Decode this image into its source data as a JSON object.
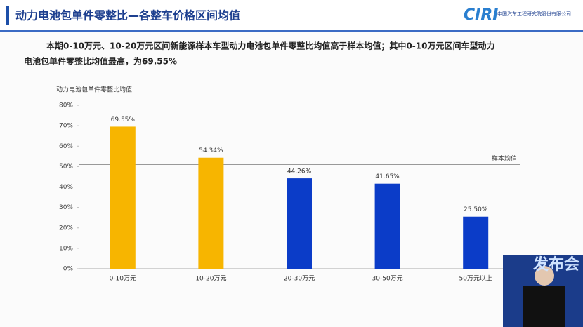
{
  "chart_data": {
    "type": "bar",
    "title": "动力电池包单件零整比—各整车价格区间均值",
    "logo": "CIRI",
    "organization": "中国汽车工程研究院股份有限公司",
    "subtitle_lines": [
      "本期0-10万元、10-20万元区间新能源样本车型动力电池包单件零整比均值高于样本均值；其中0-10万元区间车型动力",
      "电池包单件零整比均值最高，为69.55%"
    ],
    "ylabel": "动力电池包单件零整比均值",
    "categories": [
      "0-10万元",
      "10-20万元",
      "20-30万元",
      "30-50万元",
      "50万元以上"
    ],
    "values": [
      69.55,
      54.34,
      44.26,
      41.65,
      25.5
    ],
    "value_labels": [
      "69.55%",
      "54.34%",
      "44.26%",
      "41.65%",
      "25.50%"
    ],
    "colors": [
      "#f7b500",
      "#f7b500",
      "#0b3cc8",
      "#0b3cc8",
      "#0b3cc8"
    ],
    "reference_line": {
      "value": 51,
      "label": "样本均值"
    },
    "ylim": [
      0,
      80
    ],
    "yticks": [
      {
        "value": 0,
        "label": "0%"
      },
      {
        "value": 10,
        "label": "10%"
      },
      {
        "value": 20,
        "label": "20%"
      },
      {
        "value": 30,
        "label": "30%"
      },
      {
        "value": 40,
        "label": "40%"
      },
      {
        "value": 50,
        "label": "50%"
      },
      {
        "value": 60,
        "label": "60%"
      },
      {
        "value": 70,
        "label": "70%"
      },
      {
        "value": 80,
        "label": "80%"
      }
    ],
    "inset_text": "发布会"
  }
}
